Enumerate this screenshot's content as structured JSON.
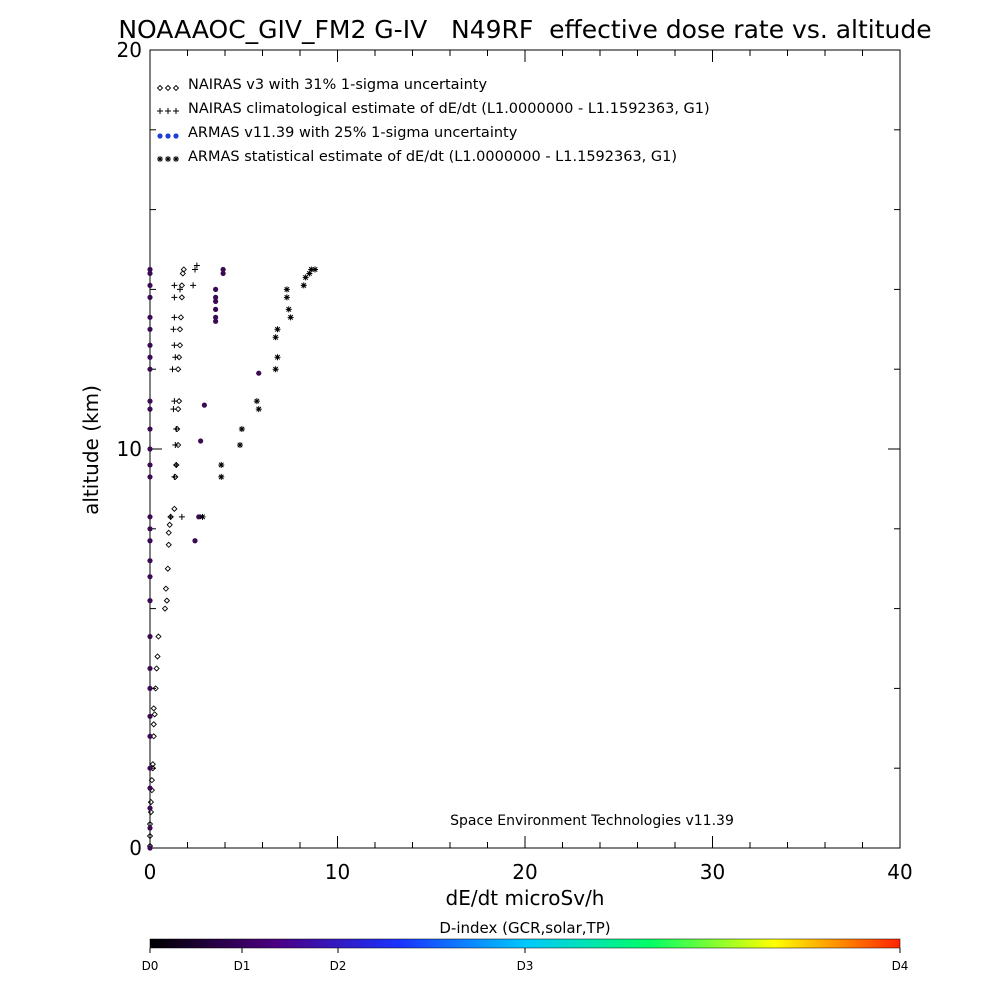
{
  "chart_data": {
    "type": "scatter",
    "title": "NOAAAOC_GIV_FM2 G-IV   N49RF  effective dose rate vs. altitude",
    "xlabel": "dE/dt microSv/h",
    "ylabel": "altitude (km)",
    "xlim": [
      0,
      40
    ],
    "ylim": [
      0,
      20
    ],
    "x_ticks": [
      "0",
      "10",
      "20",
      "30",
      "40"
    ],
    "y_ticks": [
      "0",
      "10",
      "20"
    ],
    "credit": "Space Environment Technologies v11.39",
    "legend_position": "top-left",
    "legend": [
      {
        "label": "NAIRAS v3 with 31% 1-sigma uncertainty",
        "marker": "diamond",
        "color": "#000000"
      },
      {
        "label": "NAIRAS climatological estimate of dE/dt (L1.0000000 - L1.1592363, G1)",
        "marker": "plus",
        "color": "#000000"
      },
      {
        "label": "ARMAS v11.39 with 25% 1-sigma uncertainty",
        "marker": "dot",
        "color": "#1f3fd6"
      },
      {
        "label": "ARMAS statistical estimate of dE/dt (L1.0000000 - L1.1592363, G1)",
        "marker": "asterisk",
        "color": "#000000"
      }
    ],
    "series": [
      {
        "name": "NAIRAS v3 with 31% 1-sigma uncertainty",
        "marker": "diamond",
        "points": [
          [
            0.0,
            0.05
          ],
          [
            0.0,
            0.3
          ],
          [
            0.0,
            0.6
          ],
          [
            0.05,
            0.9
          ],
          [
            0.05,
            1.15
          ],
          [
            0.1,
            1.45
          ],
          [
            0.1,
            1.7
          ],
          [
            0.15,
            2.0
          ],
          [
            0.15,
            2.1
          ],
          [
            0.2,
            2.8
          ],
          [
            0.2,
            3.1
          ],
          [
            0.25,
            3.35
          ],
          [
            0.2,
            3.5
          ],
          [
            0.3,
            4.0
          ],
          [
            0.35,
            4.5
          ],
          [
            0.4,
            4.8
          ],
          [
            0.45,
            5.3
          ],
          [
            0.8,
            6.0
          ],
          [
            0.9,
            6.2
          ],
          [
            0.85,
            6.5
          ],
          [
            0.95,
            7.0
          ],
          [
            1.0,
            7.6
          ],
          [
            1.0,
            7.9
          ],
          [
            1.05,
            8.1
          ],
          [
            1.1,
            8.3
          ],
          [
            1.3,
            8.5
          ],
          [
            1.35,
            9.3
          ],
          [
            1.4,
            9.6
          ],
          [
            1.5,
            10.1
          ],
          [
            1.45,
            10.5
          ],
          [
            1.5,
            11.0
          ],
          [
            1.55,
            11.2
          ],
          [
            1.5,
            12.0
          ],
          [
            1.55,
            12.3
          ],
          [
            1.6,
            12.6
          ],
          [
            1.6,
            13.0
          ],
          [
            1.65,
            13.3
          ],
          [
            1.7,
            13.8
          ],
          [
            1.7,
            14.1
          ],
          [
            1.75,
            14.4
          ],
          [
            1.8,
            14.5
          ]
        ]
      },
      {
        "name": "NAIRAS climatological estimate of dE/dt (L1.0000000 - L1.1592363, G1)",
        "marker": "plus",
        "points": [
          [
            1.1,
            8.3
          ],
          [
            1.7,
            8.3
          ],
          [
            1.3,
            9.3
          ],
          [
            1.4,
            9.6
          ],
          [
            1.35,
            10.1
          ],
          [
            1.4,
            10.5
          ],
          [
            1.25,
            11.0
          ],
          [
            1.3,
            11.2
          ],
          [
            1.2,
            12.0
          ],
          [
            1.35,
            12.3
          ],
          [
            1.3,
            12.6
          ],
          [
            1.25,
            13.0
          ],
          [
            1.3,
            13.3
          ],
          [
            1.3,
            13.8
          ],
          [
            1.3,
            14.1
          ],
          [
            2.3,
            14.1
          ],
          [
            2.4,
            14.5
          ],
          [
            1.6,
            14.0
          ],
          [
            2.5,
            14.6
          ]
        ]
      },
      {
        "name": "ARMAS v11.39 with 25% 1-sigma uncertainty",
        "marker": "dot",
        "points": [
          [
            0.0,
            0.0
          ],
          [
            0.0,
            0.5
          ],
          [
            0.0,
            1.0
          ],
          [
            0.0,
            1.5
          ],
          [
            0.0,
            2.0
          ],
          [
            0.0,
            2.8
          ],
          [
            0.0,
            3.3
          ],
          [
            0.0,
            4.0
          ],
          [
            0.0,
            4.5
          ],
          [
            0.0,
            5.3
          ],
          [
            0.0,
            6.2
          ],
          [
            0.0,
            6.8
          ],
          [
            0.0,
            7.2
          ],
          [
            0.0,
            7.7
          ],
          [
            0.0,
            8.0
          ],
          [
            0.0,
            8.3
          ],
          [
            2.4,
            7.7
          ],
          [
            2.6,
            8.3
          ],
          [
            0.0,
            9.3
          ],
          [
            0.0,
            9.6
          ],
          [
            0.0,
            10.0
          ],
          [
            0.0,
            10.5
          ],
          [
            0.0,
            11.0
          ],
          [
            0.0,
            11.2
          ],
          [
            2.7,
            10.2
          ],
          [
            2.9,
            11.1
          ],
          [
            0.0,
            12.0
          ],
          [
            0.0,
            12.3
          ],
          [
            0.0,
            12.6
          ],
          [
            0.0,
            13.0
          ],
          [
            0.0,
            13.3
          ],
          [
            0.0,
            13.8
          ],
          [
            0.0,
            14.1
          ],
          [
            0.0,
            14.4
          ],
          [
            0.0,
            14.5
          ],
          [
            5.8,
            11.9
          ],
          [
            3.5,
            13.2
          ],
          [
            3.5,
            13.3
          ],
          [
            3.5,
            13.5
          ],
          [
            3.5,
            13.7
          ],
          [
            3.5,
            13.8
          ],
          [
            3.5,
            14.0
          ],
          [
            3.9,
            14.4
          ],
          [
            3.9,
            14.5
          ]
        ]
      },
      {
        "name": "ARMAS statistical estimate of dE/dt (L1.0000000 - L1.1592363, G1)",
        "marker": "asterisk",
        "points": [
          [
            2.8,
            8.3
          ],
          [
            3.8,
            9.3
          ],
          [
            3.8,
            9.6
          ],
          [
            4.8,
            10.1
          ],
          [
            4.9,
            10.5
          ],
          [
            5.8,
            11.0
          ],
          [
            5.7,
            11.2
          ],
          [
            6.7,
            12.0
          ],
          [
            6.8,
            12.3
          ],
          [
            6.7,
            12.8
          ],
          [
            6.8,
            13.0
          ],
          [
            7.5,
            13.3
          ],
          [
            7.4,
            13.5
          ],
          [
            7.3,
            13.8
          ],
          [
            7.3,
            14.0
          ],
          [
            8.2,
            14.1
          ],
          [
            8.3,
            14.3
          ],
          [
            8.6,
            14.5
          ],
          [
            8.8,
            14.5
          ],
          [
            8.5,
            14.4
          ]
        ]
      }
    ],
    "colorbar": {
      "title": "D-index (GCR,solar,TP)",
      "labels": [
        "D0",
        "D1",
        "D2",
        "D3",
        "D4"
      ],
      "stops": [
        "#000000",
        "#4b0082",
        "#1a33ff",
        "#00c8ff",
        "#00ff66",
        "#ffff00",
        "#ff2200"
      ]
    }
  }
}
